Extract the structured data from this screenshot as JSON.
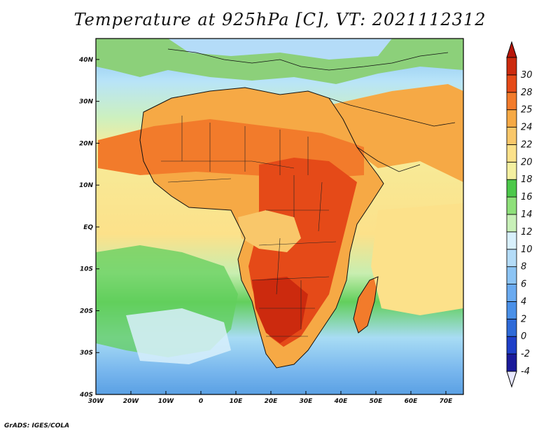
{
  "title": "Temperature at 925hPa [C], VT: 2021112312",
  "credit": "GrADS: IGES/COLA",
  "map": {
    "projection": "latlon",
    "lon_range": [
      -30,
      75
    ],
    "lat_range": [
      -40,
      45
    ],
    "lon_ticks": [
      "30W",
      "20W",
      "10W",
      "0",
      "10E",
      "20E",
      "30E",
      "40E",
      "50E",
      "60E",
      "70E"
    ],
    "lat_ticks": [
      "40N",
      "30N",
      "20N",
      "10N",
      "EQ",
      "10S",
      "20S",
      "30S",
      "40S"
    ]
  },
  "colorbar": {
    "levels": [
      "-4",
      "-2",
      "0",
      "2",
      "4",
      "6",
      "8",
      "10",
      "12",
      "14",
      "16",
      "18",
      "20",
      "22",
      "24",
      "25",
      "28",
      "30"
    ],
    "colors": [
      "#1a1a9a",
      "#1e3fc8",
      "#2e6ad8",
      "#4a90e8",
      "#6aaaf0",
      "#8cc4f4",
      "#b4dcf8",
      "#d8f0fc",
      "#c8f0b8",
      "#8ee07a",
      "#4cc84a",
      "#f4f0a0",
      "#fce18a",
      "#f9c76a",
      "#f6a945",
      "#f27b2b",
      "#e54a18",
      "#cc2a0e"
    ]
  }
}
